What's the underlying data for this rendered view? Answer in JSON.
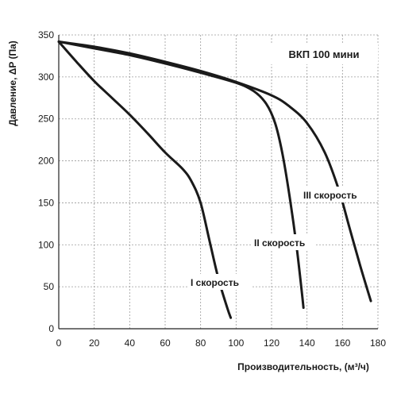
{
  "chart_data": {
    "type": "line",
    "title": "ВКП 100 мини",
    "xlabel": "Производительность, (м³/ч)",
    "ylabel": "Давление, ΔP (Па)",
    "xlim": [
      0,
      180
    ],
    "ylim": [
      0,
      350
    ],
    "x_ticks": [
      0,
      20,
      40,
      60,
      80,
      100,
      120,
      140,
      160,
      180
    ],
    "y_ticks": [
      0,
      50,
      100,
      150,
      200,
      250,
      300,
      350
    ],
    "grid": true,
    "series": [
      {
        "name": "I скорость",
        "x": [
          0,
          10,
          20,
          30,
          40,
          50,
          60,
          70,
          75,
          80,
          85,
          90,
          95,
          97
        ],
        "y": [
          342,
          318,
          295,
          275,
          255,
          233,
          210,
          190,
          175,
          150,
          105,
          60,
          25,
          13
        ]
      },
      {
        "name": "II скорость",
        "x": [
          0,
          20,
          40,
          60,
          80,
          100,
          110,
          117,
          122,
          126,
          130,
          134,
          137,
          138
        ],
        "y": [
          342,
          334,
          326,
          316,
          305,
          293,
          283,
          268,
          245,
          210,
          160,
          100,
          45,
          25
        ]
      },
      {
        "name": "III скорость",
        "x": [
          0,
          20,
          40,
          60,
          80,
          100,
          120,
          130,
          140,
          150,
          158,
          164,
          170,
          176
        ],
        "y": [
          342,
          336,
          328,
          318,
          307,
          294,
          278,
          265,
          245,
          210,
          165,
          120,
          75,
          33
        ]
      }
    ]
  }
}
